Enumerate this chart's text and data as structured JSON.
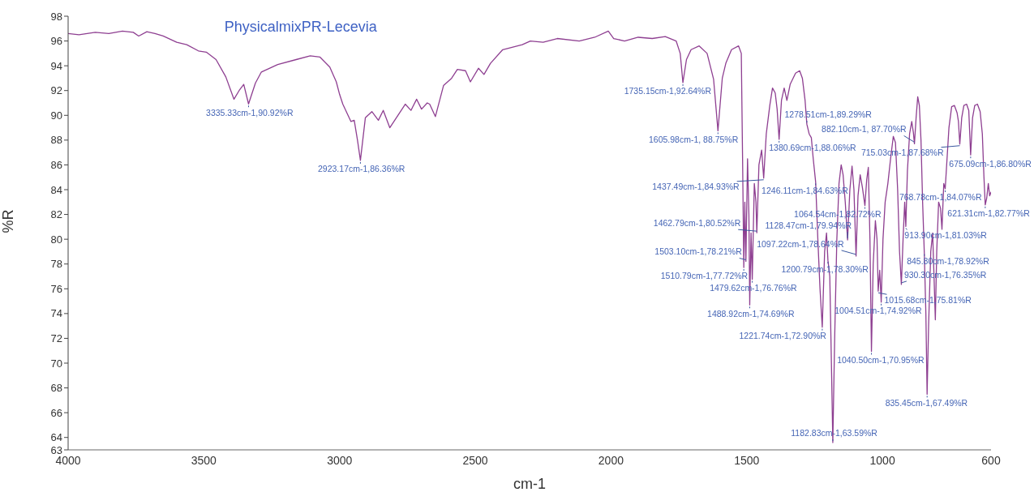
{
  "chart_data": {
    "type": "line",
    "title": "PhysicalmixPR-Lecevia",
    "xlabel": "cm-1",
    "ylabel": "%R",
    "color": "#8e3f91",
    "xlim": [
      4000,
      600
    ],
    "xticks": [
      4000,
      3500,
      3000,
      2500,
      2000,
      1500,
      1000,
      600
    ],
    "ylim": [
      63,
      98
    ],
    "yticks": [
      63,
      64,
      66,
      68,
      70,
      72,
      74,
      76,
      78,
      80,
      82,
      84,
      86,
      88,
      90,
      92,
      94,
      96,
      98
    ],
    "x": [
      4000,
      3960,
      3900,
      3850,
      3800,
      3760,
      3740,
      3710,
      3680,
      3650,
      3600,
      3563,
      3520,
      3491,
      3455,
      3419,
      3389,
      3370,
      3353,
      3335.33,
      3310,
      3288,
      3228,
      3160,
      3108,
      3072,
      3036,
      3012,
      3000,
      2988,
      2958,
      2946,
      2934,
      2923.17,
      2905,
      2881,
      2857,
      2839,
      2815,
      2758,
      2737,
      2716,
      2698,
      2677,
      2668,
      2647,
      2617,
      2587,
      2566,
      2536,
      2518,
      2488,
      2468,
      2444,
      2399,
      2327,
      2297,
      2250,
      2198,
      2117,
      2060,
      2010,
      1990,
      1950,
      1900,
      1848,
      1800,
      1760,
      1745,
      1735.15,
      1722,
      1705,
      1675,
      1646,
      1622,
      1605.98,
      1590,
      1577,
      1556,
      1530,
      1520,
      1515,
      1510.79,
      1507,
      1503.1,
      1497,
      1492,
      1488.92,
      1484,
      1479.62,
      1472,
      1466,
      1462.79,
      1455,
      1445,
      1437.49,
      1428,
      1415,
      1405,
      1395,
      1388,
      1380.69,
      1372,
      1362,
      1352,
      1340,
      1320,
      1305,
      1295,
      1285,
      1278.51,
      1270,
      1262,
      1255,
      1246.11,
      1238,
      1230,
      1221.74,
      1213,
      1206,
      1200.79,
      1194,
      1188,
      1182.83,
      1176,
      1168,
      1160,
      1152,
      1145,
      1137,
      1128.47,
      1120,
      1112,
      1105,
      1097.22,
      1090,
      1082,
      1074,
      1064.54,
      1058,
      1052,
      1046,
      1040.5,
      1034,
      1026,
      1020,
      1015.68,
      1010,
      1004.51,
      998,
      990,
      980,
      970,
      960,
      952,
      944,
      937,
      930.3,
      924,
      918,
      913.9,
      908,
      900,
      892,
      886,
      882.1,
      876,
      870,
      864,
      858,
      852,
      845.8,
      840,
      835.45,
      830,
      822,
      815,
      810,
      805.11,
      800,
      793,
      786,
      780.73,
      774,
      768.78,
      762,
      755,
      745,
      735,
      725,
      720,
      715.03,
      708,
      700,
      690,
      682,
      675.09,
      668,
      660,
      650,
      640,
      632,
      626,
      621.31,
      616,
      610,
      605,
      600
    ],
    "values": [
      96.6,
      96.5,
      96.7,
      96.6,
      96.8,
      96.7,
      96.4,
      96.75,
      96.6,
      96.4,
      95.9,
      95.7,
      95.2,
      95.1,
      94.5,
      93.1,
      91.3,
      92.0,
      92.5,
      90.92,
      92.6,
      93.5,
      94.1,
      94.5,
      94.8,
      94.7,
      93.9,
      92.7,
      91.7,
      90.9,
      89.5,
      89.6,
      88.0,
      86.36,
      89.8,
      90.3,
      89.6,
      90.4,
      89.0,
      90.9,
      90.4,
      91.3,
      90.5,
      91.0,
      90.9,
      89.9,
      92.4,
      93.0,
      93.7,
      93.6,
      92.7,
      93.8,
      93.3,
      94.2,
      95.3,
      95.7,
      96.0,
      95.9,
      96.2,
      96.0,
      96.3,
      96.8,
      96.2,
      96.0,
      96.3,
      96.2,
      96.35,
      96.0,
      95.0,
      92.64,
      94.5,
      95.3,
      95.6,
      95.0,
      92.9,
      88.75,
      93.0,
      94.2,
      95.3,
      95.6,
      95.0,
      86,
      77.72,
      83,
      78.21,
      86.5,
      82,
      74.69,
      80.5,
      76.76,
      84.5,
      83,
      80.52,
      86,
      87.2,
      84.93,
      88.5,
      90.8,
      92.2,
      91.8,
      90.5,
      88.06,
      91.2,
      92.2,
      91.2,
      92.5,
      93.4,
      93.6,
      93.0,
      91.2,
      89.29,
      88.5,
      88.2,
      86.5,
      84.63,
      80,
      76,
      72.9,
      79,
      80.5,
      78.3,
      77,
      70,
      63.59,
      72,
      80,
      84.5,
      86.0,
      85.2,
      83,
      79.94,
      84,
      85.9,
      84,
      78.64,
      83.5,
      85.2,
      84.2,
      82.72,
      84.8,
      85.8,
      80,
      70.95,
      78,
      81.5,
      80,
      75.81,
      77.5,
      74.92,
      80,
      83,
      84.5,
      86.5,
      88.3,
      87.8,
      84,
      79,
      76.35,
      80,
      83,
      81.03,
      85.5,
      88.5,
      89.5,
      88.6,
      87.7,
      89.8,
      91.5,
      90.8,
      88,
      83,
      78.92,
      74,
      67.49,
      73,
      79,
      80.5,
      77,
      73.5,
      79,
      83,
      82.5,
      80.8,
      84.5,
      84.07,
      86.5,
      89,
      90.7,
      90.8,
      90.2,
      89.5,
      87.68,
      89.8,
      90.8,
      90.9,
      90.4,
      86.8,
      89.8,
      90.8,
      90.9,
      90.3,
      88.5,
      85,
      82.77,
      83.3,
      84.5,
      83.5,
      83.8
    ],
    "annotations": [
      {
        "text": "3335.33cm-1,90.92%R",
        "x": 3335.33,
        "y": 90.92
      },
      {
        "text": "2923.17cm-1,86.36%R",
        "x": 2923.17,
        "y": 86.36
      },
      {
        "text": "1735.15cm-1,92.64%R",
        "x": 1735.15,
        "y": 92.64
      },
      {
        "text": "1605.98cm-1, 88.75%R",
        "x": 1605.98,
        "y": 88.75
      },
      {
        "text": "1278.51cm-1,89.29%R",
        "x": 1278.51,
        "y": 89.29
      },
      {
        "text": "1380.69cm-1,88.06%R",
        "x": 1380.69,
        "y": 88.06
      },
      {
        "text": "1246.11cm-1,84.63%R",
        "x": 1246.11,
        "y": 84.63
      },
      {
        "text": "1437.49cm-1,84.93%R",
        "x": 1437.49,
        "y": 84.93
      },
      {
        "text": "882.10cm-1, 87.70%R",
        "x": 882.1,
        "y": 87.7
      },
      {
        "text": "715.03cm-1,87.68%R",
        "x": 715.03,
        "y": 87.68
      },
      {
        "text": "675.09cm-1,86.80%R",
        "x": 675.09,
        "y": 86.8
      },
      {
        "text": "768.78cm-1,84.07%R",
        "x": 768.78,
        "y": 84.07
      },
      {
        "text": "913.90cm-1,81.03%R",
        "x": 913.9,
        "y": 81.03
      },
      {
        "text": "1128.47cm-1,79.94%R",
        "x": 1128.47,
        "y": 79.94
      },
      {
        "text": "621.31cm-1,82.77%R",
        "x": 621.31,
        "y": 82.77
      },
      {
        "text": "1462.79cm-1,80.52%R",
        "x": 1462.79,
        "y": 80.52
      },
      {
        "text": "1503.10cm-1,78.21%R",
        "x": 1503.1,
        "y": 78.21
      },
      {
        "text": "1510.79cm-1,77.72%R",
        "x": 1510.79,
        "y": 77.72
      },
      {
        "text": "1479.62cm-1,76.76%R",
        "x": 1479.62,
        "y": 76.76
      },
      {
        "text": "1488.92cm-1,74.69%R",
        "x": 1488.92,
        "y": 74.69
      },
      {
        "text": "845.80cm-1,78.92%R",
        "x": 845.8,
        "y": 78.92
      },
      {
        "text": "1064.54cm-1,82.72%R",
        "x": 1064.54,
        "y": 82.72
      },
      {
        "text": "930.30cm-1,76.35%R",
        "x": 930.3,
        "y": 76.35
      },
      {
        "text": "1004.51cm-1,74.92%R",
        "x": 1004.51,
        "y": 74.92
      },
      {
        "text": "1221.74cm-1,72.90%R",
        "x": 1221.74,
        "y": 72.9
      },
      {
        "text": "1015.68cm-1,75.81%R",
        "x": 1015.68,
        "y": 75.81
      },
      {
        "text": "1040.50cm-1,70.95%R",
        "x": 1040.5,
        "y": 70.95
      },
      {
        "text": "1200.79cm-1,78.30%R",
        "x": 1200.79,
        "y": 78.3
      },
      {
        "text": "1097.22cm-1,78.64%R",
        "x": 1097.22,
        "y": 78.64
      },
      {
        "text": "1182.83cm-1,63.59%R",
        "x": 1182.83,
        "y": 63.59
      },
      {
        "text": "835.45cm-1,67.49%R",
        "x": 835.45,
        "y": 67.49
      }
    ]
  }
}
